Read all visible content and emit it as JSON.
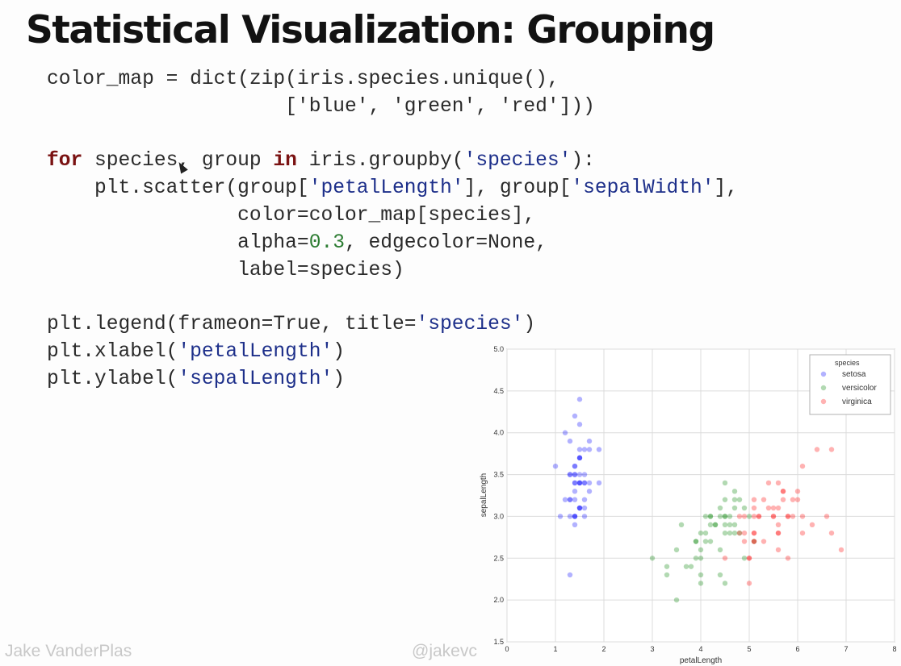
{
  "slide": {
    "title": "Statistical Visualization: Grouping",
    "author": "Jake VanderPlas",
    "handle": "@jakevc"
  },
  "code": [
    [
      [
        "color_map = dict(zip(iris.species.unique(),",
        "plain"
      ]
    ],
    [
      [
        "                    ['blue', 'green', 'red']))",
        "plain"
      ]
    ],
    [],
    [
      [
        "for",
        "kw"
      ],
      [
        " species, group ",
        "plain"
      ],
      [
        "in",
        "kw"
      ],
      [
        " iris.groupby(",
        "plain"
      ],
      [
        "'species'",
        "str"
      ],
      [
        "):",
        "plain"
      ]
    ],
    [
      [
        "    plt.scatter(group[",
        "plain"
      ],
      [
        "'petalLength'",
        "str"
      ],
      [
        "], group[",
        "plain"
      ],
      [
        "'sepalWidth'",
        "str"
      ],
      [
        "],",
        "plain"
      ]
    ],
    [
      [
        "                color=color_map[species],",
        "plain"
      ]
    ],
    [
      [
        "                alpha=",
        "plain"
      ],
      [
        "0.3",
        "num"
      ],
      [
        ", edgecolor=None,",
        "plain"
      ]
    ],
    [
      [
        "                label=species)",
        "plain"
      ]
    ],
    [],
    [
      [
        "plt.legend(frameon=True, title=",
        "plain"
      ],
      [
        "'species'",
        "str"
      ],
      [
        ")",
        "plain"
      ]
    ],
    [
      [
        "plt.xlabel(",
        "plain"
      ],
      [
        "'petalLength'",
        "str"
      ],
      [
        ")",
        "plain"
      ]
    ],
    [
      [
        "plt.ylabel(",
        "plain"
      ],
      [
        "'sepalLength'",
        "str"
      ],
      [
        ")",
        "plain"
      ]
    ]
  ],
  "chart_data": {
    "type": "scatter",
    "xlabel": "petalLength",
    "ylabel": "sepalLength",
    "xlim": [
      0,
      8
    ],
    "ylim": [
      1.5,
      5.0
    ],
    "xticks": [
      "0",
      "1",
      "2",
      "3",
      "4",
      "5",
      "6",
      "7",
      "8"
    ],
    "yticks": [
      "1.5",
      "2.0",
      "2.5",
      "3.0",
      "3.5",
      "4.0",
      "4.5",
      "5.0"
    ],
    "grid": true,
    "alpha": 0.3,
    "legend": {
      "title": "species",
      "placement": "top-right"
    },
    "series": [
      {
        "name": "setosa",
        "color": "#0000ff",
        "points": [
          [
            1.4,
            3.5
          ],
          [
            1.4,
            3.0
          ],
          [
            1.3,
            3.2
          ],
          [
            1.5,
            3.1
          ],
          [
            1.4,
            3.6
          ],
          [
            1.7,
            3.9
          ],
          [
            1.4,
            3.4
          ],
          [
            1.5,
            3.4
          ],
          [
            1.4,
            2.9
          ],
          [
            1.5,
            3.1
          ],
          [
            1.5,
            3.7
          ],
          [
            1.6,
            3.4
          ],
          [
            1.4,
            3.0
          ],
          [
            1.1,
            3.0
          ],
          [
            1.2,
            4.0
          ],
          [
            1.5,
            4.4
          ],
          [
            1.3,
            3.9
          ],
          [
            1.4,
            3.5
          ],
          [
            1.7,
            3.8
          ],
          [
            1.5,
            3.8
          ],
          [
            1.7,
            3.4
          ],
          [
            1.5,
            3.7
          ],
          [
            1.0,
            3.6
          ],
          [
            1.7,
            3.3
          ],
          [
            1.9,
            3.4
          ],
          [
            1.6,
            3.0
          ],
          [
            1.6,
            3.4
          ],
          [
            1.5,
            3.5
          ],
          [
            1.4,
            3.4
          ],
          [
            1.6,
            3.2
          ],
          [
            1.6,
            3.1
          ],
          [
            1.5,
            3.4
          ],
          [
            1.5,
            4.1
          ],
          [
            1.4,
            4.2
          ],
          [
            1.5,
            3.1
          ],
          [
            1.2,
            3.2
          ],
          [
            1.3,
            3.5
          ],
          [
            1.4,
            3.6
          ],
          [
            1.3,
            3.0
          ],
          [
            1.5,
            3.4
          ],
          [
            1.3,
            3.5
          ],
          [
            1.3,
            2.3
          ],
          [
            1.3,
            3.2
          ],
          [
            1.6,
            3.5
          ],
          [
            1.9,
            3.8
          ],
          [
            1.4,
            3.0
          ],
          [
            1.6,
            3.8
          ],
          [
            1.4,
            3.2
          ],
          [
            1.5,
            3.7
          ],
          [
            1.4,
            3.3
          ]
        ]
      },
      {
        "name": "versicolor",
        "color": "#008000",
        "points": [
          [
            4.7,
            3.2
          ],
          [
            4.5,
            3.2
          ],
          [
            4.9,
            3.1
          ],
          [
            4.0,
            2.3
          ],
          [
            4.6,
            2.8
          ],
          [
            4.5,
            2.8
          ],
          [
            4.7,
            3.3
          ],
          [
            3.3,
            2.4
          ],
          [
            4.6,
            2.9
          ],
          [
            3.9,
            2.7
          ],
          [
            3.5,
            2.0
          ],
          [
            4.2,
            3.0
          ],
          [
            4.0,
            2.2
          ],
          [
            4.7,
            2.9
          ],
          [
            3.6,
            2.9
          ],
          [
            4.4,
            3.1
          ],
          [
            4.5,
            3.0
          ],
          [
            4.1,
            2.7
          ],
          [
            4.5,
            2.2
          ],
          [
            3.9,
            2.5
          ],
          [
            4.8,
            3.2
          ],
          [
            4.0,
            2.8
          ],
          [
            4.9,
            2.5
          ],
          [
            4.7,
            2.8
          ],
          [
            4.3,
            2.9
          ],
          [
            4.4,
            3.0
          ],
          [
            4.8,
            2.8
          ],
          [
            5.0,
            3.0
          ],
          [
            4.5,
            2.9
          ],
          [
            3.5,
            2.6
          ],
          [
            3.8,
            2.4
          ],
          [
            3.7,
            2.4
          ],
          [
            3.9,
            2.7
          ],
          [
            5.1,
            2.7
          ],
          [
            4.5,
            3.0
          ],
          [
            4.5,
            3.4
          ],
          [
            4.7,
            3.1
          ],
          [
            4.4,
            2.3
          ],
          [
            4.1,
            3.0
          ],
          [
            4.0,
            2.5
          ],
          [
            4.4,
            2.6
          ],
          [
            4.6,
            3.0
          ],
          [
            4.0,
            2.6
          ],
          [
            3.3,
            2.3
          ],
          [
            4.2,
            2.7
          ],
          [
            4.2,
            3.0
          ],
          [
            4.2,
            2.9
          ],
          [
            4.3,
            2.9
          ],
          [
            3.0,
            2.5
          ],
          [
            4.1,
            2.8
          ]
        ]
      },
      {
        "name": "virginica",
        "color": "#ff0000",
        "points": [
          [
            6.0,
            3.3
          ],
          [
            5.1,
            2.7
          ],
          [
            5.9,
            3.0
          ],
          [
            5.6,
            2.9
          ],
          [
            5.8,
            3.0
          ],
          [
            6.6,
            3.0
          ],
          [
            4.5,
            2.5
          ],
          [
            6.3,
            2.9
          ],
          [
            5.8,
            2.5
          ],
          [
            6.1,
            3.6
          ],
          [
            5.1,
            3.2
          ],
          [
            5.3,
            2.7
          ],
          [
            5.5,
            3.0
          ],
          [
            5.0,
            2.5
          ],
          [
            5.1,
            2.8
          ],
          [
            5.3,
            3.2
          ],
          [
            5.5,
            3.0
          ],
          [
            6.7,
            3.8
          ],
          [
            6.9,
            2.6
          ],
          [
            5.0,
            2.2
          ],
          [
            5.7,
            3.2
          ],
          [
            4.9,
            2.8
          ],
          [
            6.7,
            2.8
          ],
          [
            4.9,
            2.7
          ],
          [
            5.7,
            3.3
          ],
          [
            6.0,
            3.2
          ],
          [
            4.8,
            2.8
          ],
          [
            4.9,
            3.0
          ],
          [
            5.6,
            2.8
          ],
          [
            5.8,
            3.0
          ],
          [
            6.1,
            2.8
          ],
          [
            6.4,
            3.8
          ],
          [
            5.6,
            2.8
          ],
          [
            5.1,
            2.8
          ],
          [
            5.6,
            2.6
          ],
          [
            6.1,
            3.0
          ],
          [
            5.6,
            3.4
          ],
          [
            5.5,
            3.1
          ],
          [
            4.8,
            3.0
          ],
          [
            5.4,
            3.1
          ],
          [
            5.6,
            3.1
          ],
          [
            5.1,
            3.1
          ],
          [
            5.1,
            2.7
          ],
          [
            5.9,
            3.2
          ],
          [
            5.7,
            3.3
          ],
          [
            5.2,
            3.0
          ],
          [
            5.0,
            2.5
          ],
          [
            5.2,
            3.0
          ],
          [
            5.4,
            3.4
          ],
          [
            5.1,
            3.0
          ]
        ]
      }
    ]
  }
}
